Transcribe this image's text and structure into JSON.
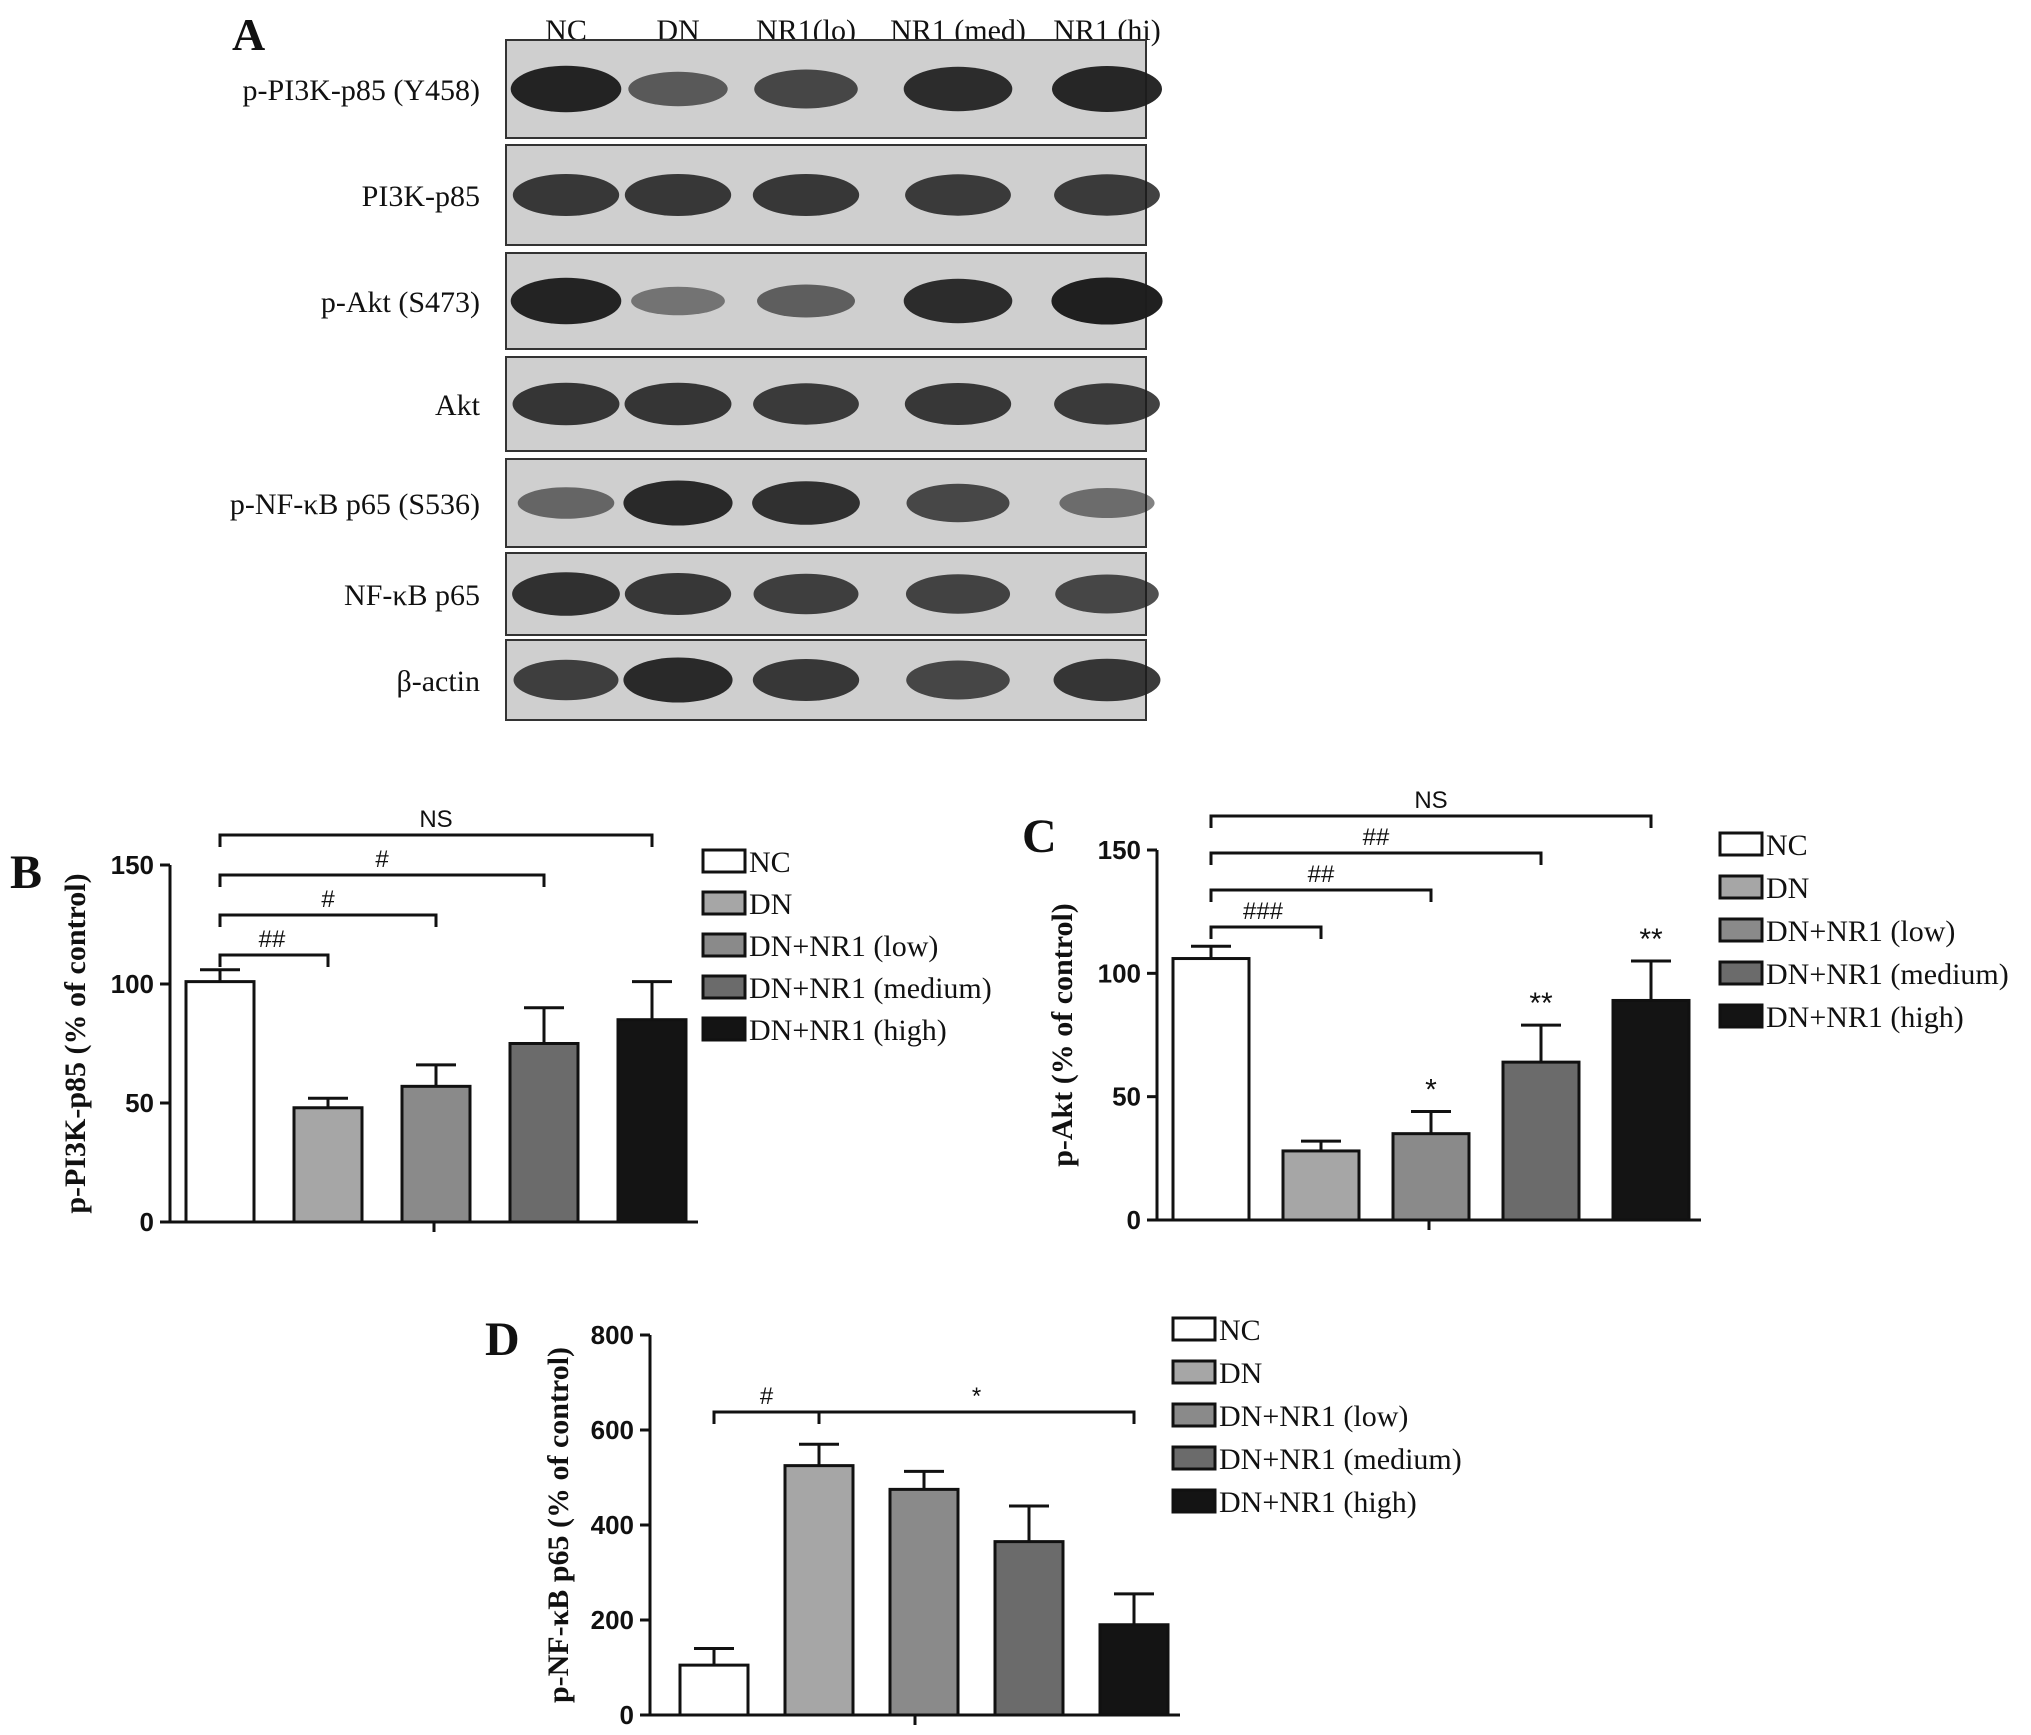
{
  "colors": {
    "NC": "#ffffff",
    "DN": "#a6a6a6",
    "DN+NR1 (low)": "#8a8a8a",
    "DN+NR1 (medium)": "#6b6b6b",
    "DN+NR1 (high)": "#141414",
    "blot_background": "#cfcfcf",
    "band": "#1c1c1c"
  },
  "blot": {
    "panel_letter": "A",
    "lanes": [
      "NC",
      "DN",
      "NR1(lo)",
      "NR1 (med)",
      "NR1 (hi)"
    ],
    "rows": [
      {
        "label": "p-PI3K-p85 (Y458)",
        "intensity": [
          0.95,
          0.55,
          0.7,
          0.88,
          0.93
        ]
      },
      {
        "label": "PI3K-p85",
        "intensity": [
          0.8,
          0.8,
          0.8,
          0.78,
          0.78
        ]
      },
      {
        "label": "p-Akt (S473)",
        "intensity": [
          0.95,
          0.35,
          0.5,
          0.88,
          0.97
        ]
      },
      {
        "label": "Akt",
        "intensity": [
          0.82,
          0.82,
          0.78,
          0.8,
          0.78
        ]
      },
      {
        "label": "p-NF-κB p65 (S536)",
        "intensity": [
          0.45,
          0.9,
          0.85,
          0.68,
          0.4
        ]
      },
      {
        "label": "NF-κB p65",
        "intensity": [
          0.85,
          0.8,
          0.75,
          0.72,
          0.7
        ]
      },
      {
        "label": "β-actin",
        "intensity": [
          0.75,
          0.9,
          0.8,
          0.7,
          0.82
        ]
      }
    ]
  },
  "chart_data": [
    {
      "panel": "B",
      "type": "bar",
      "categories": [
        "NC",
        "DN",
        "DN+NR1 (low)",
        "DN+NR1 (medium)",
        "DN+NR1 (high)"
      ],
      "values": [
        101,
        48,
        57,
        75,
        85
      ],
      "errors": [
        5,
        4,
        9,
        15,
        16
      ],
      "ylabel": "p-PI3K-p85 (% of control)",
      "ylim": [
        0,
        150
      ],
      "yticks": [
        0,
        50,
        100,
        150
      ],
      "legend": [
        "NC",
        "DN",
        "DN+NR1 (low)",
        "DN+NR1 (medium)",
        "DN+NR1 (high)"
      ],
      "significance": [
        {
          "from": 0,
          "to": 1,
          "label": "##"
        },
        {
          "from": 0,
          "to": 2,
          "label": "#"
        },
        {
          "from": 0,
          "to": 3,
          "label": "#"
        },
        {
          "from": 0,
          "to": 4,
          "label": "NS"
        }
      ],
      "bar_marks": []
    },
    {
      "panel": "C",
      "type": "bar",
      "categories": [
        "NC",
        "DN",
        "DN+NR1 (low)",
        "DN+NR1 (medium)",
        "DN+NR1 (high)"
      ],
      "values": [
        106,
        28,
        35,
        64,
        89
      ],
      "errors": [
        5,
        4,
        9,
        15,
        16
      ],
      "ylabel": "p-Akt (% of control)",
      "ylim": [
        0,
        150
      ],
      "yticks": [
        0,
        50,
        100,
        150
      ],
      "legend": [
        "NC",
        "DN",
        "DN+NR1 (low)",
        "DN+NR1 (medium)",
        "DN+NR1 (high)"
      ],
      "significance": [
        {
          "from": 0,
          "to": 1,
          "label": "###"
        },
        {
          "from": 0,
          "to": 2,
          "label": "##"
        },
        {
          "from": 0,
          "to": 3,
          "label": "##"
        },
        {
          "from": 0,
          "to": 4,
          "label": "NS"
        }
      ],
      "bar_marks": [
        {
          "index": 2,
          "label": "*"
        },
        {
          "index": 3,
          "label": "**"
        },
        {
          "index": 4,
          "label": "**"
        }
      ]
    },
    {
      "panel": "D",
      "type": "bar",
      "categories": [
        "NC",
        "DN",
        "DN+NR1 (low)",
        "DN+NR1 (medium)",
        "DN+NR1 (high)"
      ],
      "values": [
        105,
        525,
        475,
        365,
        190
      ],
      "errors": [
        35,
        45,
        38,
        75,
        65
      ],
      "ylabel": "p-NF-κB p65 (% of control)",
      "ylim": [
        0,
        800
      ],
      "yticks": [
        0,
        200,
        400,
        600,
        800
      ],
      "legend": [
        "NC",
        "DN",
        "DN+NR1 (low)",
        "DN+NR1 (medium)",
        "DN+NR1 (high)"
      ],
      "significance": [
        {
          "from": 0,
          "to": 1,
          "label": "#"
        },
        {
          "from": 1,
          "to": 4,
          "label": "*"
        }
      ],
      "bar_marks": []
    }
  ]
}
